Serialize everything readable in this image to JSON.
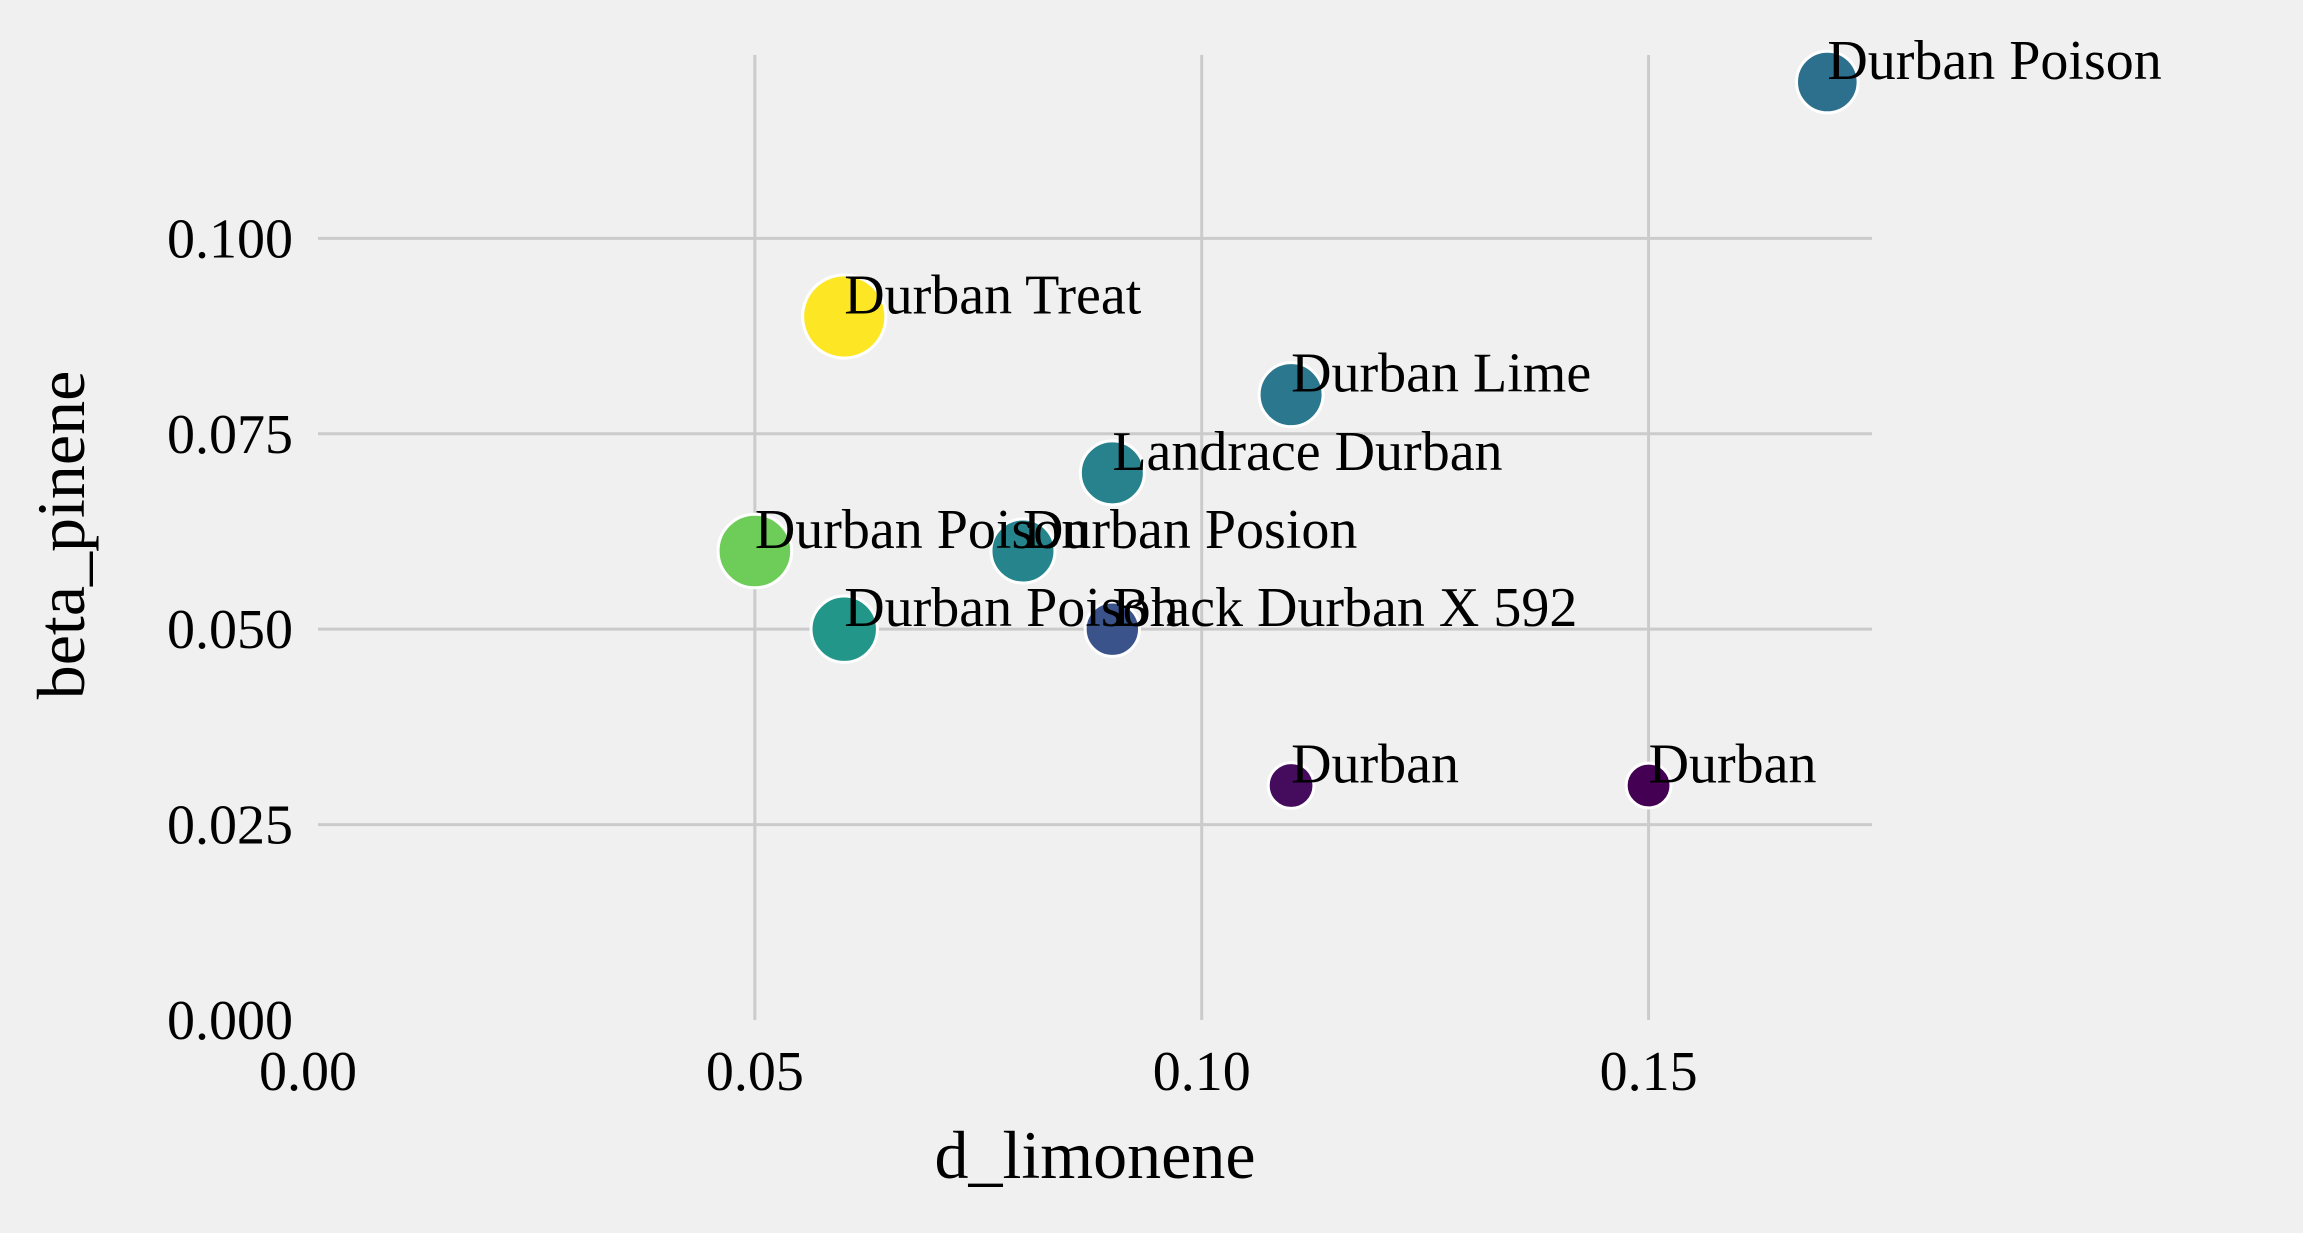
{
  "chart_data": {
    "type": "scatter",
    "title": "",
    "xlabel": "d_limonene",
    "ylabel": "beta_pinene",
    "xlim": [
      0.0,
      0.175
    ],
    "ylim": [
      0.0,
      0.12
    ],
    "grid": true,
    "x_ticks": [
      0.0,
      0.05,
      0.1,
      0.15
    ],
    "x_tick_labels": [
      "0.00",
      "0.05",
      "0.10",
      "0.15"
    ],
    "y_ticks": [
      0.0,
      0.025,
      0.05,
      0.075,
      0.1
    ],
    "y_tick_labels": [
      "0.000",
      "0.025",
      "0.050",
      "0.075",
      "0.100"
    ],
    "colormap": "viridis",
    "background_color": "#f0f0f0",
    "grid_color": "#cbcbcb",
    "marker_edge_color": "#ffffff",
    "points": [
      {
        "label": "Durban Poison",
        "x": 0.17,
        "y": 0.12,
        "color_value": 0.37,
        "size": 0.45
      },
      {
        "label": "Durban Treat",
        "x": 0.06,
        "y": 0.09,
        "color_value": 1.0,
        "size": 0.9
      },
      {
        "label": "Durban Lime",
        "x": 0.11,
        "y": 0.08,
        "color_value": 0.4,
        "size": 0.5
      },
      {
        "label": "Landrace Durban",
        "x": 0.09,
        "y": 0.07,
        "color_value": 0.44,
        "size": 0.5
      },
      {
        "label": "Durban Poison",
        "x": 0.05,
        "y": 0.06,
        "color_value": 0.78,
        "size": 0.7
      },
      {
        "label": "Durban Posion",
        "x": 0.08,
        "y": 0.06,
        "color_value": 0.45,
        "size": 0.5
      },
      {
        "label": "Durban Poison",
        "x": 0.06,
        "y": 0.05,
        "color_value": 0.53,
        "size": 0.55
      },
      {
        "label": "Black Durban X 592",
        "x": 0.09,
        "y": 0.05,
        "color_value": 0.26,
        "size": 0.3
      },
      {
        "label": "Durban",
        "x": 0.11,
        "y": 0.03,
        "color_value": 0.04,
        "size": 0.12
      },
      {
        "label": "Durban",
        "x": 0.15,
        "y": 0.03,
        "color_value": 0.0,
        "size": 0.1
      }
    ]
  }
}
